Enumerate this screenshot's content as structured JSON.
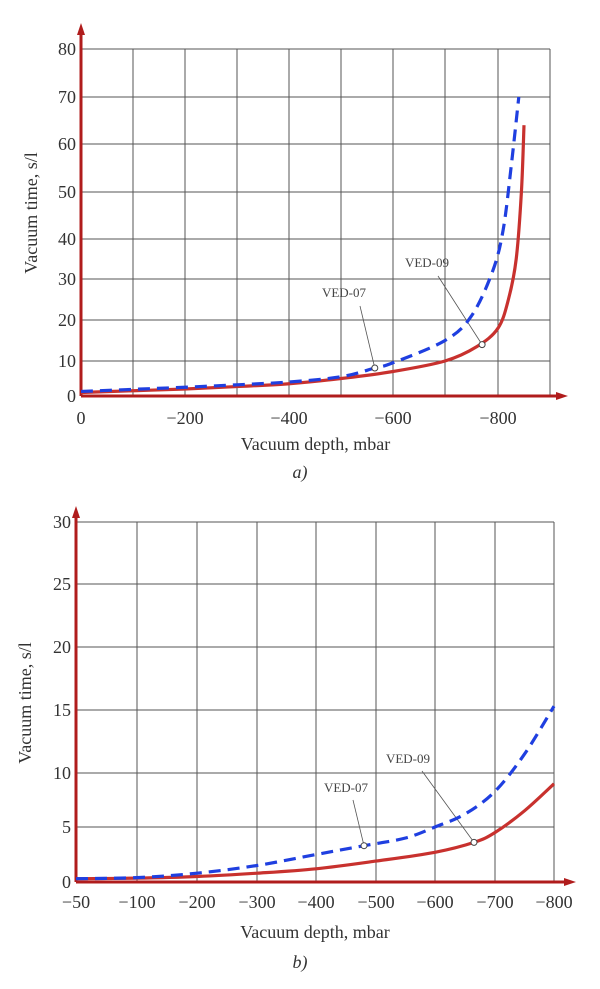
{
  "colors": {
    "ved09": "#c8312e",
    "ved07": "#1f3fe0",
    "axis": "#b01c1c",
    "grid": "#555555"
  },
  "chart_data": [
    {
      "type": "line",
      "caption": "a)",
      "xlabel": "Vacuum depth, mbar",
      "ylabel": "Vacuum time, s/l",
      "xlim": [
        0,
        -900
      ],
      "ylim": [
        0,
        80
      ],
      "grid": true,
      "x_ticks": [
        0,
        -100,
        -200,
        -300,
        -400,
        -500,
        -600,
        -700,
        -800,
        -900
      ],
      "x_tick_labels": [
        "0",
        "",
        "−200",
        "",
        "−400",
        "",
        "−600",
        "",
        "−800",
        ""
      ],
      "y_ticks": [
        0,
        10,
        20,
        30,
        40,
        50,
        60,
        70,
        80
      ],
      "y_tick_labels": [
        "0",
        "10",
        "20",
        "30",
        "40",
        "50",
        "60",
        "70",
        "80"
      ],
      "series": [
        {
          "name": "VED-09",
          "style": "solid",
          "x": [
            0,
            -100,
            -200,
            -300,
            -400,
            -500,
            -600,
            -700,
            -760,
            -800,
            -820,
            -835,
            -845,
            -850
          ],
          "y": [
            1,
            1.5,
            2,
            2.7,
            3.5,
            5,
            7,
            10,
            13.5,
            18,
            25,
            35,
            50,
            64
          ],
          "marker": [
            -770,
            14
          ]
        },
        {
          "name": "VED-07",
          "style": "dashed",
          "x": [
            0,
            -100,
            -200,
            -300,
            -400,
            -500,
            -565,
            -600,
            -700,
            -750,
            -790,
            -810,
            -825,
            -840
          ],
          "y": [
            1.3,
            1.9,
            2.5,
            3.2,
            4,
            5.5,
            8,
            9.5,
            15,
            21,
            32,
            42,
            55,
            70
          ],
          "marker": [
            -565,
            8
          ]
        }
      ]
    },
    {
      "type": "line",
      "caption": "b)",
      "xlabel": "Vacuum depth, mbar",
      "ylabel": "Vacuum time, s/l",
      "xlim": [
        -50,
        -800
      ],
      "ylim": [
        0,
        30
      ],
      "grid": true,
      "x_ticks": [
        -50,
        -100,
        -200,
        -300,
        -400,
        -500,
        -600,
        -700,
        -800
      ],
      "x_tick_labels": [
        "−50",
        "−100",
        "−200",
        "−300",
        "−400",
        "−500",
        "−600",
        "−700",
        "−800"
      ],
      "y_ticks": [
        0,
        5,
        10,
        15,
        20,
        25,
        30
      ],
      "y_tick_labels": [
        "0",
        "5",
        "10",
        "15",
        "20",
        "25",
        "30"
      ],
      "series": [
        {
          "name": "VED-09",
          "style": "solid",
          "x": [
            -50,
            -100,
            -200,
            -300,
            -400,
            -500,
            -600,
            -665,
            -700,
            -750,
            -800
          ],
          "y": [
            0.3,
            0.35,
            0.5,
            0.8,
            1.2,
            1.9,
            2.7,
            3.6,
            4.5,
            6.5,
            9
          ],
          "marker": [
            -665,
            3.6
          ]
        },
        {
          "name": "VED-07",
          "style": "dashed",
          "x": [
            -50,
            -100,
            -200,
            -300,
            -400,
            -480,
            -550,
            -600,
            -650,
            -700,
            -750,
            -800
          ],
          "y": [
            0.3,
            0.4,
            0.8,
            1.5,
            2.5,
            3.3,
            4,
            5,
            6.2,
            8.3,
            11.5,
            15.3
          ],
          "marker": [
            -480,
            3.3
          ]
        }
      ]
    }
  ]
}
